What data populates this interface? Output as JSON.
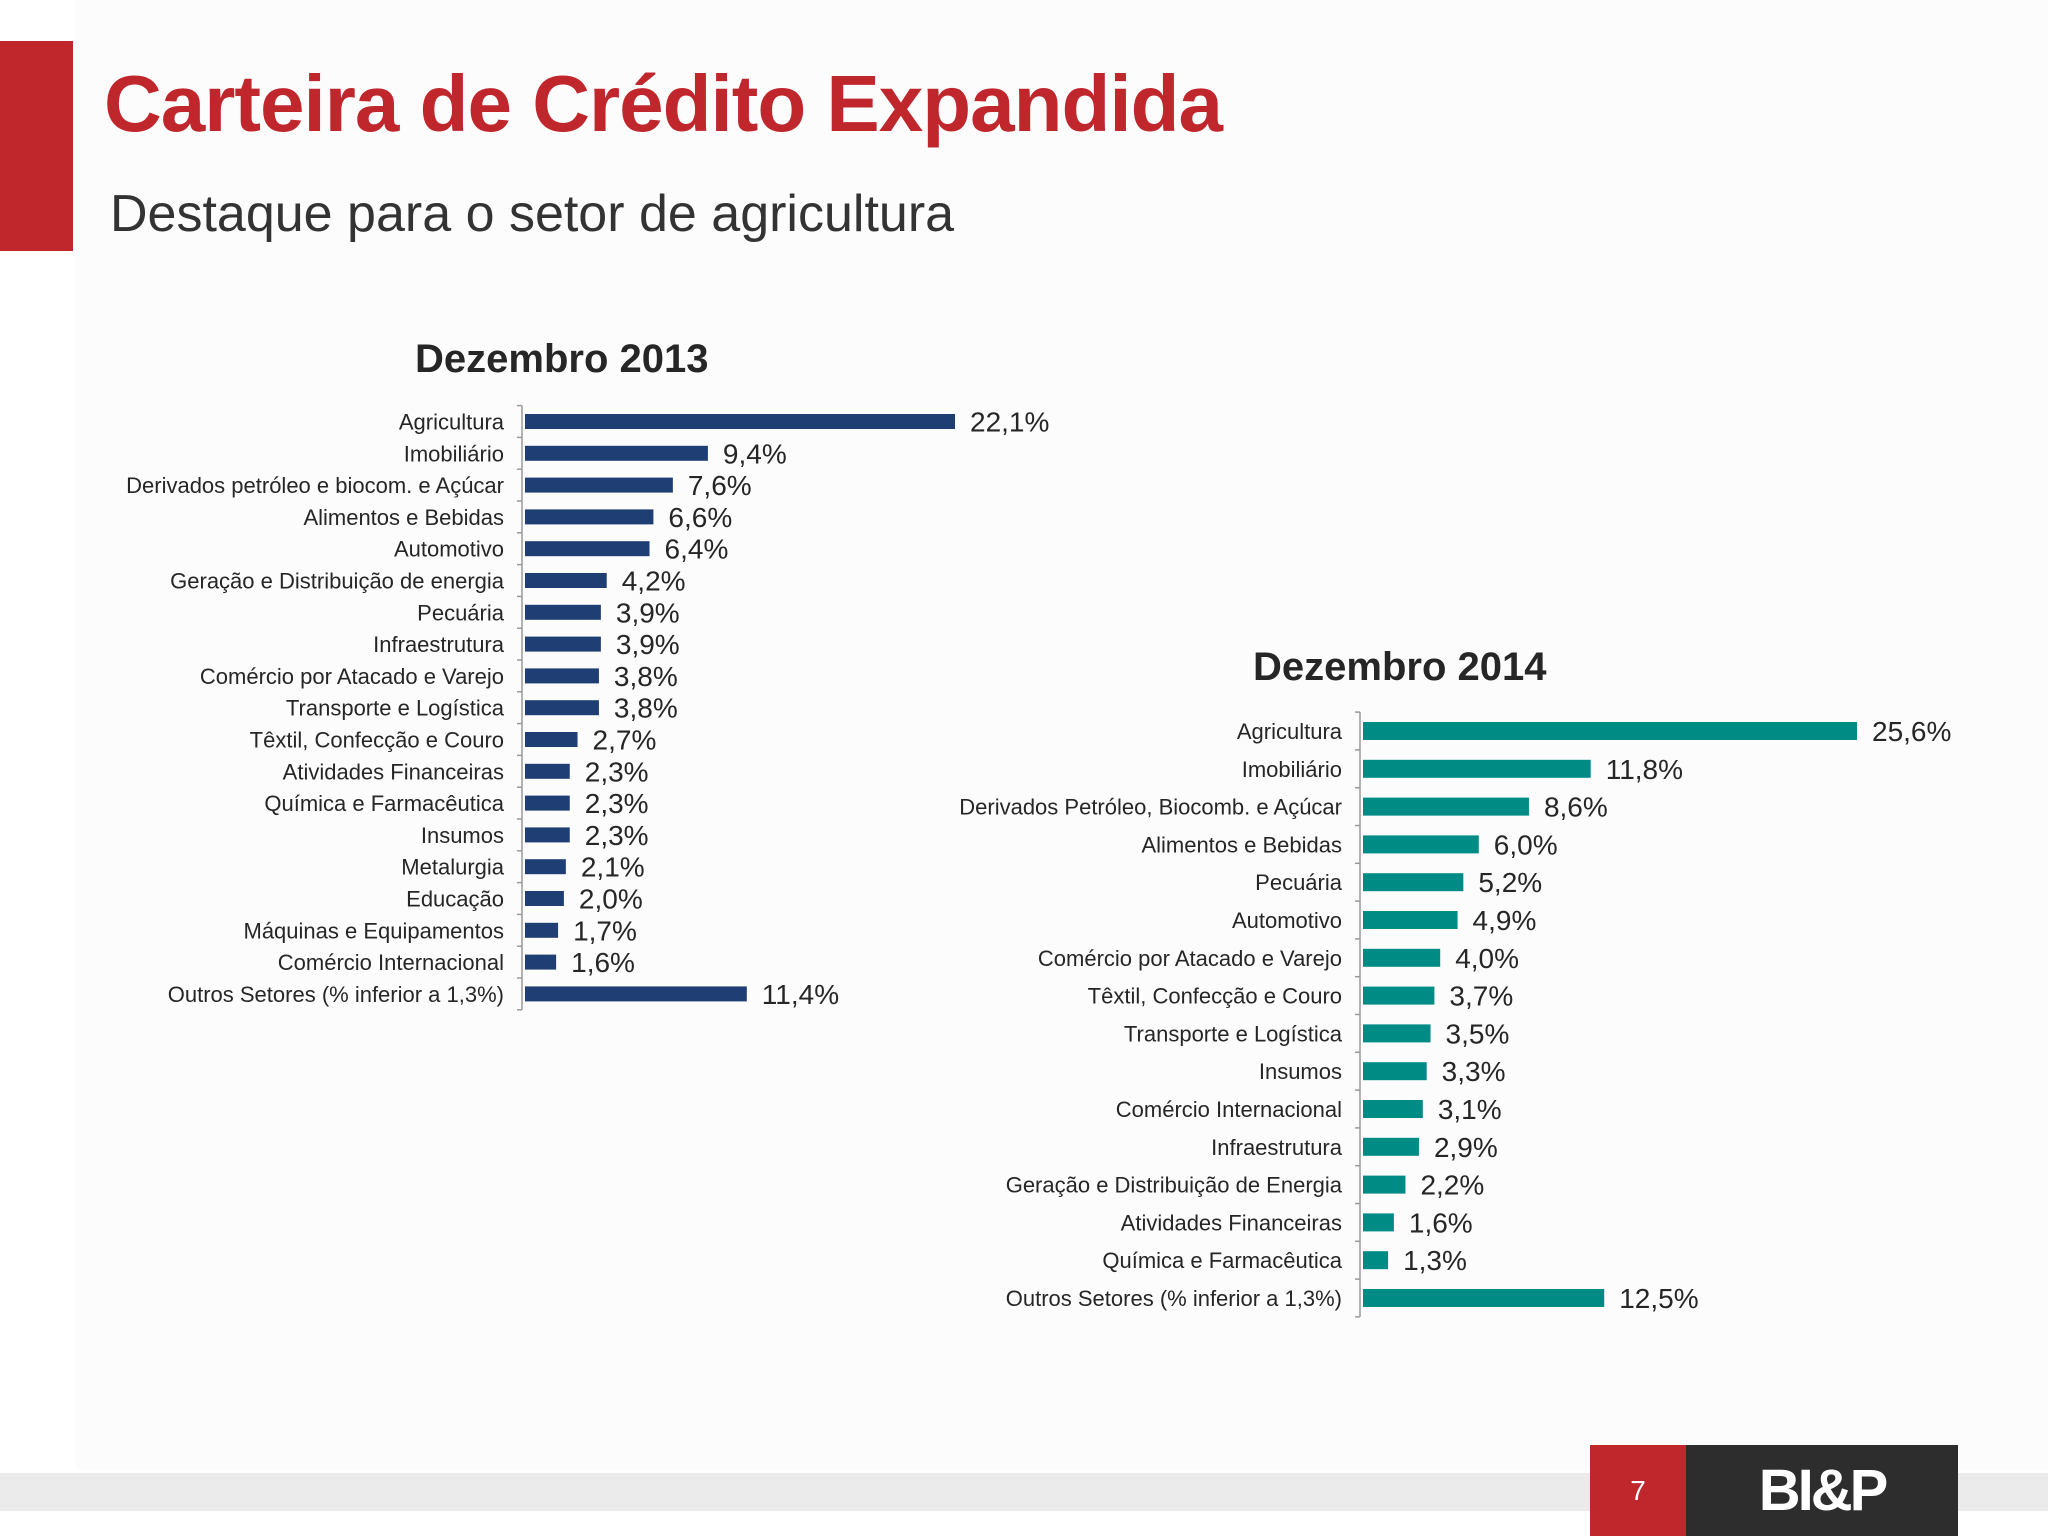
{
  "header": {
    "title": "Carteira de Crédito Expandida",
    "subtitle": "Destaque para o setor de agricultura"
  },
  "footer": {
    "page_number": "7",
    "logo_text": "BI&P"
  },
  "colors": {
    "accent": "#c0272d",
    "bar_2013": "#1f3f74",
    "bar_2014": "#008c84"
  },
  "chart_data": [
    {
      "type": "bar",
      "orientation": "horizontal",
      "title": "Dezembro 2013",
      "color": "#1f3f74",
      "categories": [
        "Agricultura",
        "Imobiliário",
        "Derivados petróleo e biocom. e Açúcar",
        "Alimentos e Bebidas",
        "Automotivo",
        "Geração e Distribuição de energia",
        "Pecuária",
        "Infraestrutura",
        "Comércio por Atacado e Varejo",
        "Transporte e Logística",
        "Têxtil, Confecção e Couro",
        "Atividades Financeiras",
        "Química e Farmacêutica",
        "Insumos",
        "Metalurgia",
        "Educação",
        "Máquinas e Equipamentos",
        "Comércio Internacional",
        "Outros Setores (% inferior a 1,3%)"
      ],
      "values": [
        22.1,
        9.4,
        7.6,
        6.6,
        6.4,
        4.2,
        3.9,
        3.9,
        3.8,
        3.8,
        2.7,
        2.3,
        2.3,
        2.3,
        2.1,
        2.0,
        1.7,
        1.6,
        11.4
      ],
      "labels": [
        "22,1%",
        "9,4%",
        "7,6%",
        "6,6%",
        "6,4%",
        "4,2%",
        "3,9%",
        "3,9%",
        "3,8%",
        "3,8%",
        "2,7%",
        "2,3%",
        "2,3%",
        "2,3%",
        "2,1%",
        "2,0%",
        "1,7%",
        "1,6%",
        "11,4%"
      ]
    },
    {
      "type": "bar",
      "orientation": "horizontal",
      "title": "Dezembro 2014",
      "color": "#008c84",
      "categories": [
        "Agricultura",
        "Imobiliário",
        "Derivados Petróleo, Biocomb. e Açúcar",
        "Alimentos e Bebidas",
        "Pecuária",
        "Automotivo",
        "Comércio por Atacado e Varejo",
        "Têxtil, Confecção e Couro",
        "Transporte e Logística",
        "Insumos",
        "Comércio Internacional",
        "Infraestrutura",
        "Geração e Distribuição de Energia",
        "Atividades Financeiras",
        "Química e Farmacêutica",
        "Outros Setores (% inferior a 1,3%)"
      ],
      "values": [
        25.6,
        11.8,
        8.6,
        6.0,
        5.2,
        4.9,
        4.0,
        3.7,
        3.5,
        3.3,
        3.1,
        2.9,
        2.2,
        1.6,
        1.3,
        12.5
      ],
      "labels": [
        "25,6%",
        "11,8%",
        "8,6%",
        "6,0%",
        "5,2%",
        "4,9%",
        "4,0%",
        "3,7%",
        "3,5%",
        "3,3%",
        "3,1%",
        "2,9%",
        "2,2%",
        "1,6%",
        "1,3%",
        "12,5%"
      ]
    }
  ]
}
